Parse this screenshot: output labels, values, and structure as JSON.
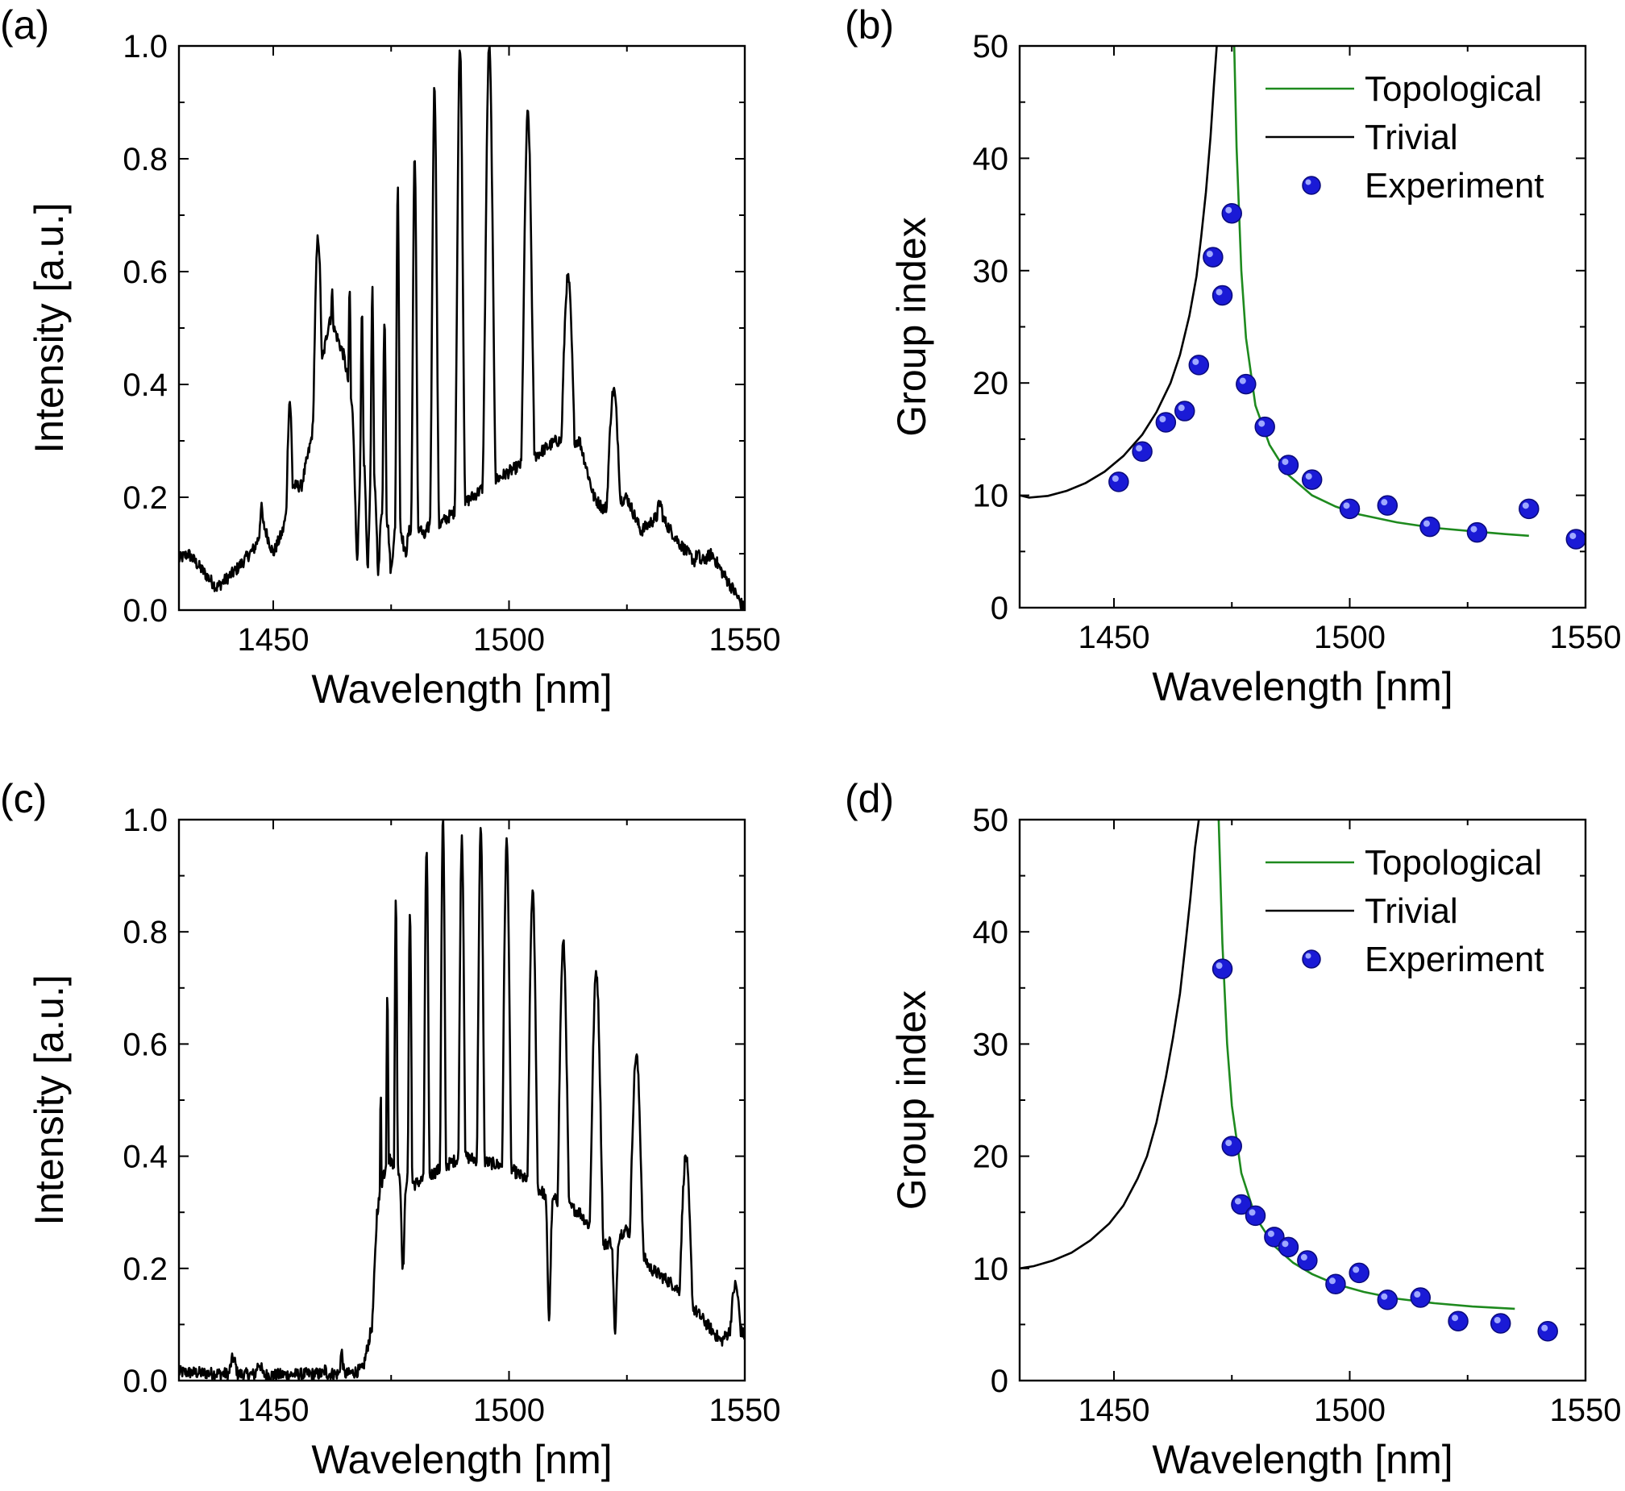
{
  "figure": {
    "panels": [
      "(a)",
      "(b)",
      "(c)",
      "(d)"
    ]
  },
  "chart_data": [
    {
      "panel": "(a)",
      "type": "line",
      "xlabel": "Wavelength [nm]",
      "ylabel": "Intensity [a.u.]",
      "xlim": [
        1430,
        1550
      ],
      "ylim": [
        0.0,
        1.0
      ],
      "xticks": [
        1450,
        1500,
        1550
      ],
      "xtick_labels": [
        "1450",
        "1500",
        "1550"
      ],
      "yticks": [
        0.0,
        0.2,
        0.4,
        0.6,
        0.8,
        1.0
      ],
      "ytick_labels": [
        "0.0",
        "0.2",
        "0.4",
        "0.6",
        "0.8",
        "1.0"
      ],
      "grid": false,
      "series": [
        {
          "color": "#000000",
          "baseline": [
            [
              1430,
              0.09
            ],
            [
              1432,
              0.1
            ],
            [
              1436,
              0.06
            ],
            [
              1438,
              0.04
            ],
            [
              1442,
              0.07
            ],
            [
              1446,
              0.11
            ],
            [
              1448,
              0.15
            ],
            [
              1450,
              0.1
            ],
            [
              1452,
              0.14
            ],
            [
              1454,
              0.22
            ],
            [
              1456,
              0.22
            ],
            [
              1458,
              0.3
            ],
            [
              1460,
              0.42
            ],
            [
              1462,
              0.52
            ],
            [
              1465,
              0.45
            ],
            [
              1468,
              0.3
            ],
            [
              1475,
              0.14
            ],
            [
              1485,
              0.15
            ],
            [
              1495,
              0.22
            ],
            [
              1505,
              0.27
            ],
            [
              1510,
              0.3
            ],
            [
              1515,
              0.3
            ],
            [
              1518,
              0.2
            ],
            [
              1520,
              0.18
            ],
            [
              1525,
              0.2
            ],
            [
              1528,
              0.14
            ],
            [
              1532,
              0.17
            ],
            [
              1536,
              0.12
            ],
            [
              1540,
              0.08
            ],
            [
              1543,
              0.1
            ],
            [
              1545,
              0.07
            ],
            [
              1548,
              0.03
            ],
            [
              1550,
              0.0
            ]
          ],
          "peaks": [
            [
              1447.5,
              0.18,
              0.6
            ],
            [
              1453.5,
              0.37,
              0.6
            ],
            [
              1459.5,
              0.66,
              0.9
            ],
            [
              1462.5,
              0.56,
              0.6
            ],
            [
              1466.2,
              0.57,
              0.3
            ],
            [
              1468.8,
              0.54,
              0.3
            ],
            [
              1471.0,
              0.57,
              0.3
            ],
            [
              1473.6,
              0.52,
              0.3
            ],
            [
              1476.4,
              0.75,
              0.3
            ],
            [
              1480.0,
              0.81,
              0.4
            ],
            [
              1484.2,
              0.93,
              0.5
            ],
            [
              1489.6,
              1.0,
              0.6
            ],
            [
              1495.8,
              1.0,
              0.8
            ],
            [
              1504.0,
              0.88,
              0.9
            ],
            [
              1512.5,
              0.59,
              1.2
            ],
            [
              1522.2,
              0.39,
              1.2
            ],
            [
              1532.0,
              0.19,
              1.2
            ],
            [
              1540.0,
              0.1,
              1.0
            ]
          ],
          "dips": [
            [
              1467.8,
              0.1,
              0.4
            ],
            [
              1470.0,
              0.08,
              0.3
            ],
            [
              1472.3,
              0.07,
              0.3
            ],
            [
              1475.0,
              0.07,
              0.3
            ],
            [
              1478.0,
              0.1,
              0.4
            ],
            [
              1482.0,
              0.13,
              0.4
            ]
          ]
        }
      ]
    },
    {
      "panel": "(b)",
      "type": "line",
      "xlabel": "Wavelength [nm]",
      "ylabel": "Group index",
      "xlim": [
        1430,
        1550
      ],
      "ylim": [
        0,
        50
      ],
      "xticks": [
        1450,
        1500,
        1550
      ],
      "xtick_labels": [
        "1450",
        "1500",
        "1550"
      ],
      "yticks": [
        0,
        10,
        20,
        30,
        40,
        50
      ],
      "ytick_labels": [
        "0",
        "10",
        "20",
        "30",
        "40",
        "50"
      ],
      "grid": false,
      "legend_position": "top-right",
      "series": [
        {
          "name": "Topological",
          "color": "#1e8a1e",
          "x": [
            1475.5,
            1476,
            1477,
            1478,
            1480,
            1483,
            1487,
            1492,
            1497,
            1502,
            1510,
            1518,
            1526,
            1533,
            1538
          ],
          "y": [
            50,
            41,
            30,
            24,
            18,
            14.5,
            11.8,
            10,
            9,
            8.3,
            7.6,
            7.1,
            6.8,
            6.55,
            6.4
          ]
        },
        {
          "name": "Trivial",
          "color": "#000000",
          "x": [
            1430,
            1432,
            1436,
            1440,
            1444,
            1448,
            1452,
            1456,
            1459,
            1462,
            1464,
            1466,
            1467.5,
            1468.5,
            1469.5,
            1470.5,
            1471.2,
            1471.8
          ],
          "y": [
            10,
            9.8,
            9.95,
            10.4,
            11.1,
            12.1,
            13.5,
            15.4,
            17.4,
            20,
            22.5,
            26,
            29.5,
            33,
            37,
            42,
            46.5,
            50
          ]
        },
        {
          "name": "Experiment",
          "color": "#2020e0",
          "type": "scatter",
          "x": [
            1451,
            1456,
            1461,
            1465,
            1468,
            1471,
            1473,
            1475,
            1478,
            1482,
            1487,
            1492,
            1500,
            1508,
            1517,
            1527,
            1538,
            1548
          ],
          "y": [
            11.2,
            13.9,
            16.5,
            17.5,
            21.6,
            31.2,
            27.8,
            35.1,
            19.9,
            16.1,
            12.7,
            11.4,
            8.8,
            9.1,
            7.2,
            6.7,
            8.8,
            6.1
          ]
        }
      ]
    },
    {
      "panel": "(c)",
      "type": "line",
      "xlabel": "Wavelength [nm]",
      "ylabel": "Intensity [a.u.]",
      "xlim": [
        1430,
        1550
      ],
      "ylim": [
        0.0,
        1.0
      ],
      "xticks": [
        1450,
        1500,
        1550
      ],
      "xtick_labels": [
        "1450",
        "1500",
        "1550"
      ],
      "yticks": [
        0.0,
        0.2,
        0.4,
        0.6,
        0.8,
        1.0
      ],
      "ytick_labels": [
        "0.0",
        "0.2",
        "0.4",
        "0.6",
        "0.8",
        "1.0"
      ],
      "grid": false,
      "series": [
        {
          "color": "#000000",
          "baseline": [
            [
              1430,
              0.015
            ],
            [
              1440,
              0.012
            ],
            [
              1450,
              0.01
            ],
            [
              1460,
              0.012
            ],
            [
              1466,
              0.012
            ],
            [
              1469,
              0.02
            ],
            [
              1471,
              0.1
            ],
            [
              1472,
              0.3
            ],
            [
              1474,
              0.4
            ],
            [
              1480,
              0.35
            ],
            [
              1490,
              0.4
            ],
            [
              1500,
              0.38
            ],
            [
              1508,
              0.33
            ],
            [
              1515,
              0.3
            ],
            [
              1520,
              0.24
            ],
            [
              1525,
              0.27
            ],
            [
              1530,
              0.2
            ],
            [
              1535,
              0.17
            ],
            [
              1540,
              0.12
            ],
            [
              1545,
              0.07
            ],
            [
              1548,
              0.1
            ],
            [
              1550,
              0.08
            ]
          ],
          "peaks": [
            [
              1441.5,
              0.04,
              0.6
            ],
            [
              1447.0,
              0.03,
              0.6
            ],
            [
              1461.0,
              0.02,
              0.3
            ],
            [
              1464.5,
              0.05,
              0.3
            ],
            [
              1472.8,
              0.52,
              0.2
            ],
            [
              1474.2,
              0.7,
              0.25
            ],
            [
              1476.0,
              0.86,
              0.3
            ],
            [
              1479.0,
              0.84,
              0.35
            ],
            [
              1482.5,
              0.94,
              0.45
            ],
            [
              1486.0,
              1.0,
              0.45
            ],
            [
              1490.0,
              0.97,
              0.55
            ],
            [
              1494.0,
              0.98,
              0.6
            ],
            [
              1499.5,
              0.96,
              0.7
            ],
            [
              1505.0,
              0.87,
              0.8
            ],
            [
              1511.5,
              0.78,
              0.9
            ],
            [
              1518.5,
              0.73,
              1.0
            ],
            [
              1527.0,
              0.58,
              1.1
            ],
            [
              1537.5,
              0.4,
              1.0
            ],
            [
              1548.0,
              0.17,
              1.0
            ]
          ],
          "dips": [
            [
              1473.6,
              0.37,
              0.15
            ],
            [
              1477.5,
              0.2,
              0.3
            ],
            [
              1508.5,
              0.11,
              0.3
            ],
            [
              1522.5,
              0.08,
              0.3
            ]
          ]
        }
      ]
    },
    {
      "panel": "(d)",
      "type": "line",
      "xlabel": "Wavelength [nm]",
      "ylabel": "Group index",
      "xlim": [
        1430,
        1550
      ],
      "ylim": [
        0,
        50
      ],
      "xticks": [
        1450,
        1500,
        1550
      ],
      "xtick_labels": [
        "1450",
        "1500",
        "1550"
      ],
      "yticks": [
        0,
        10,
        20,
        30,
        40,
        50
      ],
      "ytick_labels": [
        "0",
        "10",
        "20",
        "30",
        "40",
        "50"
      ],
      "grid": false,
      "legend_position": "top-right",
      "series": [
        {
          "name": "Topological",
          "color": "#1e8a1e",
          "x": [
            1472.2,
            1473,
            1474,
            1475,
            1477,
            1480,
            1484,
            1488,
            1492,
            1497,
            1503,
            1510,
            1518,
            1526,
            1535
          ],
          "y": [
            50,
            39,
            30,
            24.5,
            18.5,
            14.6,
            12,
            10.5,
            9.5,
            8.6,
            7.9,
            7.3,
            6.9,
            6.6,
            6.4
          ]
        },
        {
          "name": "Trivial",
          "color": "#000000",
          "x": [
            1430,
            1433,
            1437,
            1441,
            1445,
            1449,
            1452,
            1455,
            1457,
            1459,
            1461,
            1462.5,
            1464,
            1465.2,
            1466.2,
            1467.2,
            1468
          ],
          "y": [
            10,
            10.2,
            10.7,
            11.4,
            12.5,
            14,
            15.6,
            18,
            20,
            23,
            27,
            30.5,
            34.5,
            39,
            43,
            47.5,
            50
          ]
        },
        {
          "name": "Experiment",
          "color": "#2020e0",
          "type": "scatter",
          "x": [
            1473,
            1475,
            1477,
            1480,
            1484,
            1487,
            1491,
            1497,
            1502,
            1508,
            1515,
            1523,
            1532,
            1542
          ],
          "y": [
            36.7,
            20.9,
            15.7,
            14.7,
            12.8,
            11.9,
            10.7,
            8.6,
            9.6,
            7.2,
            7.4,
            5.3,
            5.1,
            4.4
          ]
        }
      ]
    }
  ]
}
